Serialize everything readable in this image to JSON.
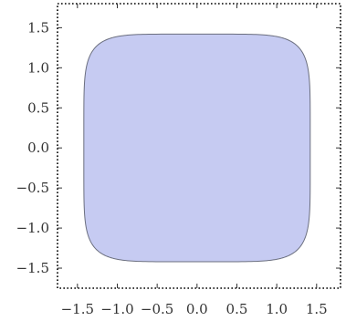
{
  "chart_data": {
    "type": "area",
    "title": "",
    "xlabel": "",
    "ylabel": "",
    "xlim": [
      -1.75,
      1.8
    ],
    "ylim": [
      -1.75,
      1.8
    ],
    "x_ticks": [
      -1.5,
      -1.0,
      -0.5,
      0.0,
      0.5,
      1.0,
      1.5
    ],
    "x_tick_labels": [
      "−1.5",
      "−1.0",
      "−0.5",
      "0.0",
      "0.5",
      "1.0",
      "1.5"
    ],
    "y_ticks": [
      -1.5,
      -1.0,
      -0.5,
      0.0,
      0.5,
      1.0,
      1.5
    ],
    "y_tick_labels": [
      "−1.5",
      "−1.0",
      "−0.5",
      "0.0",
      "0.5",
      "1.0",
      "1.5"
    ],
    "grid": false,
    "frame": "dotted",
    "shape": {
      "kind": "superellipse",
      "exponent": 6,
      "half_width": 1.42,
      "half_height": 1.42,
      "fill": "#c6cbf2",
      "stroke": "#6b6f7f"
    },
    "frame_color": "#000000",
    "tick_color": "#333333"
  }
}
